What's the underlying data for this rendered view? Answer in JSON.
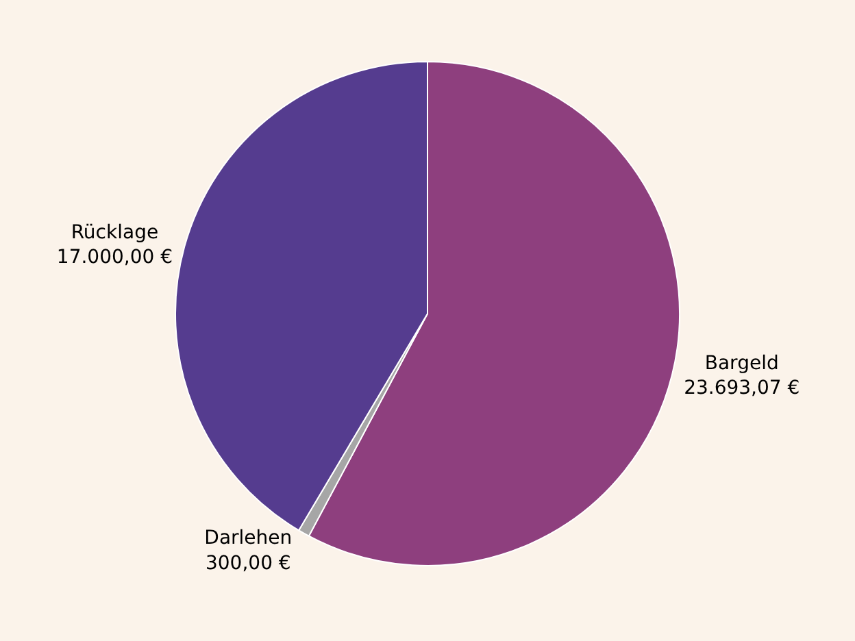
{
  "chart_data": {
    "type": "pie",
    "categories": [
      "Bargeld",
      "Darlehen",
      "Rücklage"
    ],
    "values": [
      23693.07,
      300,
      17000
    ],
    "value_labels": [
      "23.693,07 €",
      "300,00 €",
      "17.000,00 €"
    ],
    "colors": [
      "#8e3f7e",
      "#a6a6a6",
      "#553c8f"
    ],
    "legend": false
  }
}
